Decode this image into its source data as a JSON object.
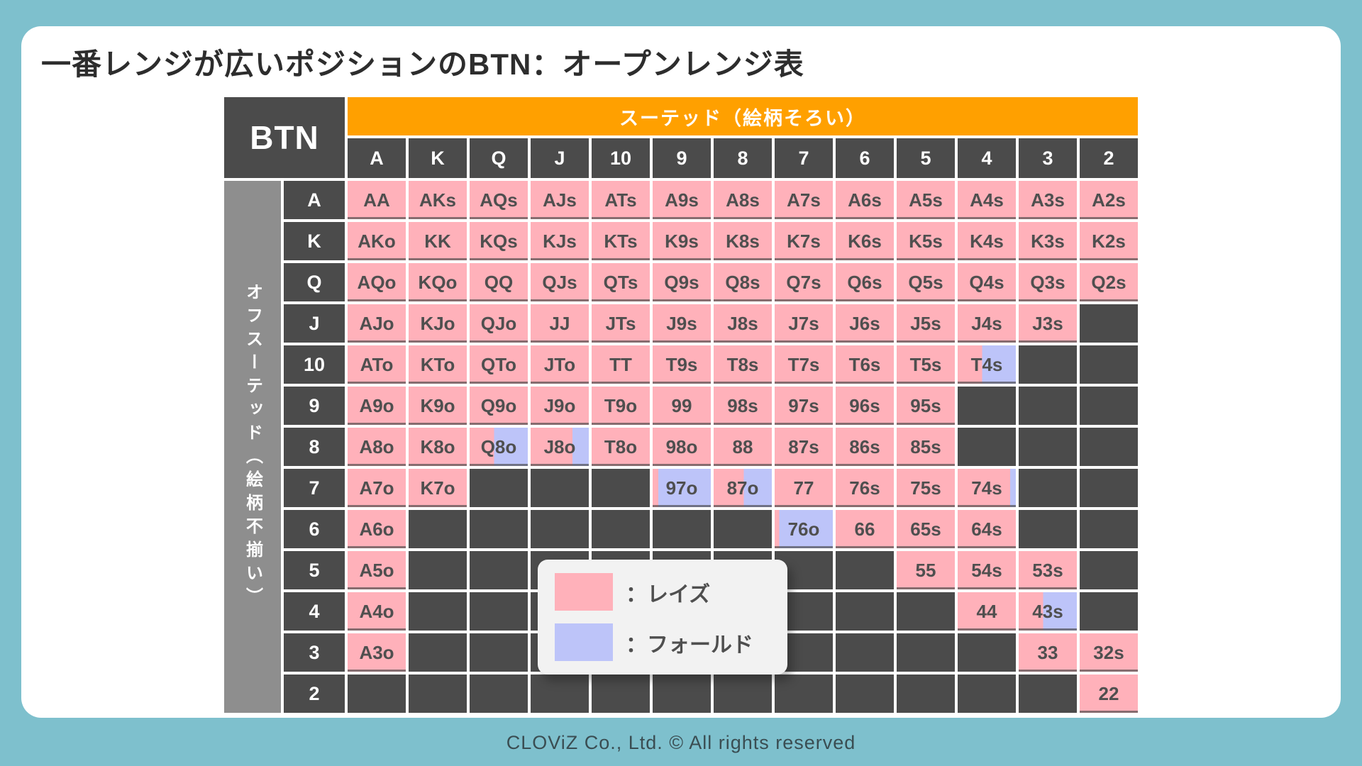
{
  "title": "一番レンジが広いポジションのBTN：オープンレンジ表",
  "footer": "CLOViZ Co., Ltd. © All rights reserved",
  "colors": {
    "background_teal": "#7ec0cd",
    "card_white": "#ffffff",
    "header_orange": "#ffa000",
    "header_dark": "#4b4b4b",
    "offsuit_gray": "#8e8e8e",
    "raise_pink": "#ffb1ba",
    "fold_purple": "#bdc4f9",
    "empty_dark": "#4b4b4b",
    "cell_text": "#4f4f4f"
  },
  "legend": {
    "items": [
      {
        "swatch": "raise_pink",
        "label": "：レイズ"
      },
      {
        "swatch": "fold_purple",
        "label": "：フォールド"
      }
    ]
  },
  "chart_data": {
    "type": "table",
    "corner_label": "BTN",
    "suited_header": "スーテッド（絵柄そろい）",
    "offsuit_header": "オフスーテッド（絵柄不揃い）",
    "column_headers": [
      "A",
      "K",
      "Q",
      "J",
      "10",
      "9",
      "8",
      "7",
      "6",
      "5",
      "4",
      "3",
      "2"
    ],
    "fill_codes": {
      "r": "raise (pink)",
      "e": "empty (dark)",
      "mNN": "mixed: NN% raise from left, remainder fold (purple)"
    },
    "rows": [
      {
        "label": "A",
        "cells": [
          [
            "AA",
            "r"
          ],
          [
            "AKs",
            "r"
          ],
          [
            "AQs",
            "r"
          ],
          [
            "AJs",
            "r"
          ],
          [
            "ATs",
            "r"
          ],
          [
            "A9s",
            "r"
          ],
          [
            "A8s",
            "r"
          ],
          [
            "A7s",
            "r"
          ],
          [
            "A6s",
            "r"
          ],
          [
            "A5s",
            "r"
          ],
          [
            "A4s",
            "r"
          ],
          [
            "A3s",
            "r"
          ],
          [
            "A2s",
            "r"
          ]
        ]
      },
      {
        "label": "K",
        "cells": [
          [
            "AKo",
            "r"
          ],
          [
            "KK",
            "r"
          ],
          [
            "KQs",
            "r"
          ],
          [
            "KJs",
            "r"
          ],
          [
            "KTs",
            "r"
          ],
          [
            "K9s",
            "r"
          ],
          [
            "K8s",
            "r"
          ],
          [
            "K7s",
            "r"
          ],
          [
            "K6s",
            "r"
          ],
          [
            "K5s",
            "r"
          ],
          [
            "K4s",
            "r"
          ],
          [
            "K3s",
            "r"
          ],
          [
            "K2s",
            "r"
          ]
        ]
      },
      {
        "label": "Q",
        "cells": [
          [
            "AQo",
            "r"
          ],
          [
            "KQo",
            "r"
          ],
          [
            "QQ",
            "r"
          ],
          [
            "QJs",
            "r"
          ],
          [
            "QTs",
            "r"
          ],
          [
            "Q9s",
            "r"
          ],
          [
            "Q8s",
            "r"
          ],
          [
            "Q7s",
            "r"
          ],
          [
            "Q6s",
            "r"
          ],
          [
            "Q5s",
            "r"
          ],
          [
            "Q4s",
            "r"
          ],
          [
            "Q3s",
            "r"
          ],
          [
            "Q2s",
            "r"
          ]
        ]
      },
      {
        "label": "J",
        "cells": [
          [
            "AJo",
            "r"
          ],
          [
            "KJo",
            "r"
          ],
          [
            "QJo",
            "r"
          ],
          [
            "JJ",
            "r"
          ],
          [
            "JTs",
            "r"
          ],
          [
            "J9s",
            "r"
          ],
          [
            "J8s",
            "r"
          ],
          [
            "J7s",
            "r"
          ],
          [
            "J6s",
            "r"
          ],
          [
            "J5s",
            "r"
          ],
          [
            "J4s",
            "r"
          ],
          [
            "J3s",
            "r"
          ],
          [
            "",
            "e"
          ]
        ]
      },
      {
        "label": "10",
        "cells": [
          [
            "ATo",
            "r"
          ],
          [
            "KTo",
            "r"
          ],
          [
            "QTo",
            "r"
          ],
          [
            "JTo",
            "r"
          ],
          [
            "TT",
            "r"
          ],
          [
            "T9s",
            "r"
          ],
          [
            "T8s",
            "r"
          ],
          [
            "T7s",
            "r"
          ],
          [
            "T6s",
            "r"
          ],
          [
            "T5s",
            "r"
          ],
          [
            "T4s",
            "m42"
          ],
          [
            "",
            "e"
          ],
          [
            "",
            "e"
          ]
        ]
      },
      {
        "label": "9",
        "cells": [
          [
            "A9o",
            "r"
          ],
          [
            "K9o",
            "r"
          ],
          [
            "Q9o",
            "r"
          ],
          [
            "J9o",
            "r"
          ],
          [
            "T9o",
            "r"
          ],
          [
            "99",
            "r"
          ],
          [
            "98s",
            "r"
          ],
          [
            "97s",
            "r"
          ],
          [
            "96s",
            "r"
          ],
          [
            "95s",
            "r"
          ],
          [
            "",
            "e"
          ],
          [
            "",
            "e"
          ],
          [
            "",
            "e"
          ]
        ]
      },
      {
        "label": "8",
        "cells": [
          [
            "A8o",
            "r"
          ],
          [
            "K8o",
            "r"
          ],
          [
            "Q8o",
            "m42"
          ],
          [
            "J8o",
            "m72"
          ],
          [
            "T8o",
            "r"
          ],
          [
            "98o",
            "r"
          ],
          [
            "88",
            "r"
          ],
          [
            "87s",
            "r"
          ],
          [
            "86s",
            "r"
          ],
          [
            "85s",
            "r"
          ],
          [
            "",
            "e"
          ],
          [
            "",
            "e"
          ],
          [
            "",
            "e"
          ]
        ]
      },
      {
        "label": "7",
        "cells": [
          [
            "A7o",
            "r"
          ],
          [
            "K7o",
            "r"
          ],
          [
            "",
            "e"
          ],
          [
            "",
            "e"
          ],
          [
            "",
            "e"
          ],
          [
            "97o",
            "m10"
          ],
          [
            "87o",
            "m52"
          ],
          [
            "77",
            "r"
          ],
          [
            "76s",
            "r"
          ],
          [
            "75s",
            "r"
          ],
          [
            "74s",
            "m90"
          ],
          [
            "",
            "e"
          ],
          [
            "",
            "e"
          ]
        ]
      },
      {
        "label": "6",
        "cells": [
          [
            "A6o",
            "r"
          ],
          [
            "",
            "e"
          ],
          [
            "",
            "e"
          ],
          [
            "",
            "e"
          ],
          [
            "",
            "e"
          ],
          [
            "",
            "e"
          ],
          [
            "",
            "e"
          ],
          [
            "76o",
            "m8"
          ],
          [
            "66",
            "r"
          ],
          [
            "65s",
            "r"
          ],
          [
            "64s",
            "r"
          ],
          [
            "",
            "e"
          ],
          [
            "",
            "e"
          ]
        ]
      },
      {
        "label": "5",
        "cells": [
          [
            "A5o",
            "r"
          ],
          [
            "",
            "e"
          ],
          [
            "",
            "e"
          ],
          [
            "",
            "e"
          ],
          [
            "",
            "e"
          ],
          [
            "",
            "e"
          ],
          [
            "",
            "e"
          ],
          [
            "",
            "e"
          ],
          [
            "",
            "e"
          ],
          [
            "55",
            "r"
          ],
          [
            "54s",
            "r"
          ],
          [
            "53s",
            "r"
          ],
          [
            "",
            "e"
          ]
        ]
      },
      {
        "label": "4",
        "cells": [
          [
            "A4o",
            "r"
          ],
          [
            "",
            "e"
          ],
          [
            "",
            "e"
          ],
          [
            "",
            "e"
          ],
          [
            "",
            "e"
          ],
          [
            "",
            "e"
          ],
          [
            "",
            "e"
          ],
          [
            "",
            "e"
          ],
          [
            "",
            "e"
          ],
          [
            "",
            "e"
          ],
          [
            "44",
            "r"
          ],
          [
            "43s",
            "m42"
          ],
          [
            "",
            "e"
          ]
        ]
      },
      {
        "label": "3",
        "cells": [
          [
            "A3o",
            "r"
          ],
          [
            "",
            "e"
          ],
          [
            "",
            "e"
          ],
          [
            "",
            "e"
          ],
          [
            "",
            "e"
          ],
          [
            "",
            "e"
          ],
          [
            "",
            "e"
          ],
          [
            "",
            "e"
          ],
          [
            "",
            "e"
          ],
          [
            "",
            "e"
          ],
          [
            "",
            "e"
          ],
          [
            "33",
            "r"
          ],
          [
            "32s",
            "r"
          ]
        ]
      },
      {
        "label": "2",
        "cells": [
          [
            "",
            "e"
          ],
          [
            "",
            "e"
          ],
          [
            "",
            "e"
          ],
          [
            "",
            "e"
          ],
          [
            "",
            "e"
          ],
          [
            "",
            "e"
          ],
          [
            "",
            "e"
          ],
          [
            "",
            "e"
          ],
          [
            "",
            "e"
          ],
          [
            "",
            "e"
          ],
          [
            "",
            "e"
          ],
          [
            "",
            "e"
          ],
          [
            "22",
            "r"
          ]
        ]
      }
    ]
  }
}
